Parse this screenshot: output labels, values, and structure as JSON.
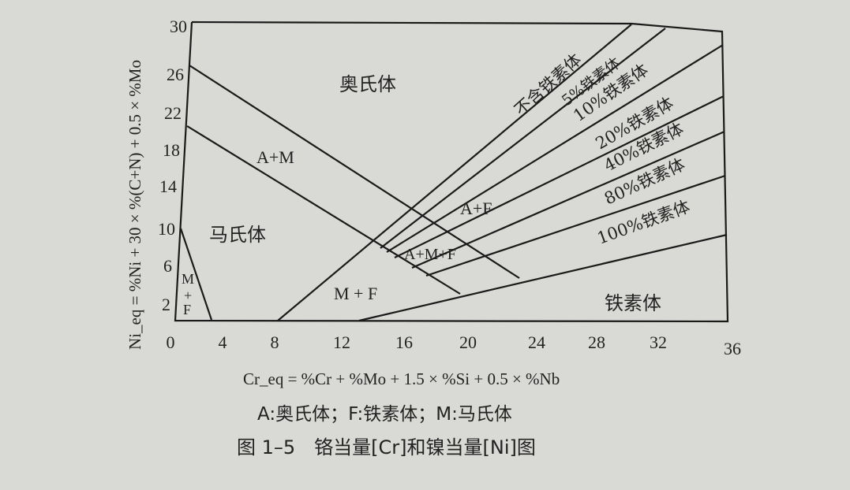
{
  "diagram": {
    "y_axis": {
      "label": "Ni_eq = %Ni + 30 × %(C+N) + 0.5 × %Mo",
      "ticks": [
        "30",
        "26",
        "22",
        "18",
        "14",
        "10",
        "6",
        "2"
      ]
    },
    "x_axis": {
      "label": "Cr_eq = %Cr + %Mo + 1.5 × %Si + 0.5 × %Nb",
      "ticks": [
        "0",
        "4",
        "8",
        "12",
        "16",
        "20",
        "24",
        "28",
        "32",
        "36"
      ]
    },
    "regions": {
      "austenite": "奥氏体",
      "a_m": "A+M",
      "martensite": "马氏体",
      "m_f_small": [
        "M",
        "+",
        "F"
      ],
      "m_f": "M + F",
      "a_f": "A+F",
      "a_m_f": "A+M+F",
      "ferrite": "铁素体"
    },
    "ferrite_lines": [
      "不含铁素体",
      "5%铁素体",
      "10%铁素体",
      "20%铁素体",
      "40%铁素体",
      "80%铁素体",
      "100%铁素体"
    ],
    "legend": "A:奥氏体；F:铁素体；M:马氏体",
    "caption": "图 1–5　铬当量[Cr]和镍当量[Ni]图"
  }
}
